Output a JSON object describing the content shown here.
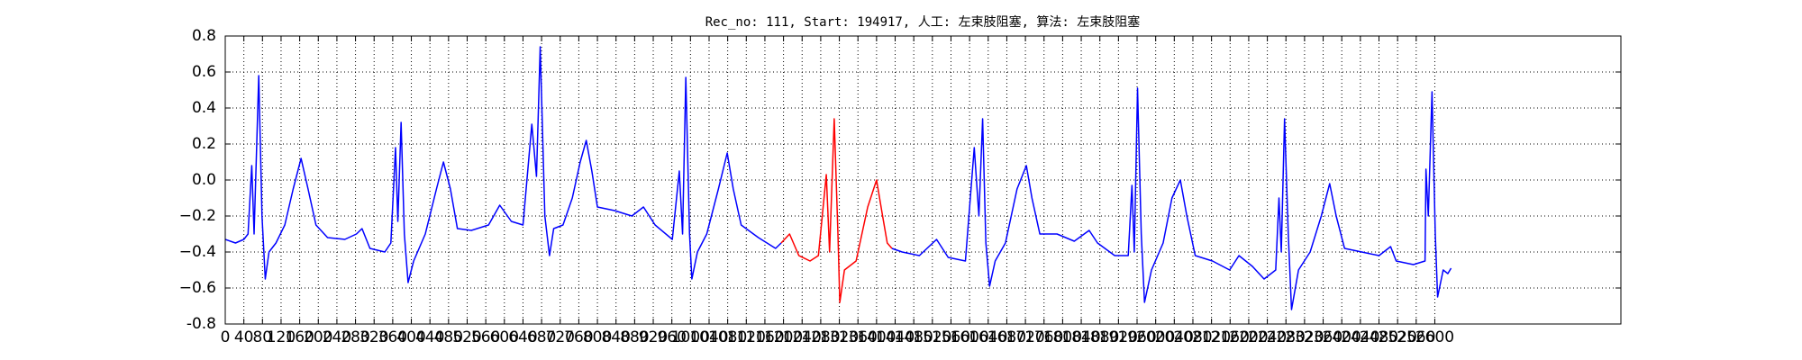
{
  "chart_data": {
    "type": "line",
    "title": "Rec_no: 111, Start: 194917, 人工: 左束肢阻塞, 算法: 左束肢阻塞",
    "xlim": [
      0,
      3000
    ],
    "ylim": [
      -0.8,
      0.8
    ],
    "xticks": [
      0,
      40,
      80,
      120,
      160,
      200,
      240,
      280,
      320,
      360,
      400,
      440,
      480,
      520,
      560,
      600,
      640,
      680,
      720,
      760,
      800,
      840,
      880,
      920,
      960,
      1000,
      1040,
      1080,
      1120,
      1160,
      1200,
      1240,
      1280,
      1320,
      1360,
      1400,
      1440,
      1480,
      1520,
      1560,
      1600,
      1640,
      1680,
      1720,
      1760,
      1800,
      1840,
      1880,
      1920,
      1960,
      2000,
      2040,
      2080,
      2120,
      2160,
      2200,
      2240,
      2280,
      2320,
      2360,
      2400,
      2440,
      2480,
      2520,
      2560,
      2600
    ],
    "yticks": [
      -0.8,
      {
        "value": -0.6,
        "label": "−0.6"
      },
      {
        "value": -0.4,
        "label": "−0.4"
      },
      {
        "value": -0.2,
        "label": "−0.2"
      },
      {
        "value": 0,
        "label": "0.0"
      },
      0.2,
      0.4,
      0.6,
      0.8
    ],
    "grid": true,
    "series": [
      {
        "color": "#0000ff",
        "x": [
          0,
          22,
          40,
          49,
          57,
          62,
          72,
          79,
          86,
          94,
          109,
          128,
          146,
          163,
          178,
          195,
          220,
          257,
          282,
          294,
          311,
          343,
          356,
          366,
          371,
          378,
          385,
          393,
          405,
          430,
          454,
          469,
          484,
          499,
          529,
          566,
          590,
          615,
          640,
          659,
          669,
          677,
          687,
          697,
          706,
          726,
          746,
          763,
          776,
          788,
          800,
          837,
          874,
          899,
          924,
          961,
          976,
          983,
          990,
          998,
          1003,
          1015,
          1035,
          1060,
          1079,
          1092,
          1109,
          1146,
          1183,
          1195
        ],
        "values": [
          -0.33,
          -0.35,
          -0.33,
          -0.3,
          0.08,
          -0.3,
          0.58,
          -0.2,
          -0.55,
          -0.4,
          -0.35,
          -0.25,
          -0.05,
          0.12,
          -0.05,
          -0.25,
          -0.32,
          -0.33,
          -0.3,
          -0.27,
          -0.38,
          -0.4,
          -0.35,
          0.18,
          -0.23,
          0.32,
          -0.3,
          -0.57,
          -0.45,
          -0.3,
          -0.05,
          0.1,
          -0.05,
          -0.27,
          -0.28,
          -0.25,
          -0.14,
          -0.23,
          -0.25,
          0.31,
          0.02,
          0.74,
          -0.2,
          -0.42,
          -0.27,
          -0.25,
          -0.1,
          0.1,
          0.22,
          0.05,
          -0.15,
          -0.17,
          -0.2,
          -0.15,
          -0.25,
          -0.33,
          0.05,
          -0.3,
          0.57,
          -0.3,
          -0.55,
          -0.4,
          -0.3,
          -0.05,
          0.15,
          -0.05,
          -0.25,
          -0.32,
          -0.38,
          -0.35
        ]
      },
      {
        "color": "#ff0000",
        "x": [
          1195,
          1213,
          1233,
          1257,
          1275,
          1292,
          1299,
          1309,
          1317,
          1321,
          1331,
          1356,
          1381,
          1400,
          1413,
          1423,
          1433
        ],
        "values": [
          -0.35,
          -0.3,
          -0.42,
          -0.45,
          -0.42,
          0.03,
          -0.4,
          0.34,
          -0.3,
          -0.68,
          -0.5,
          -0.45,
          -0.15,
          0.0,
          -0.2,
          -0.35,
          -0.38
        ]
      },
      {
        "color": "#0000ff",
        "x": [
          1433,
          1455,
          1492,
          1529,
          1554,
          1591,
          1610,
          1620,
          1628,
          1635,
          1643,
          1655,
          1677,
          1702,
          1722,
          1734,
          1751,
          1788,
          1825,
          1857,
          1875,
          1912,
          1941,
          1949,
          1954,
          1961,
          1969,
          1976,
          1991,
          2016,
          2035,
          2053,
          2067,
          2085,
          2122,
          2159,
          2179,
          2208,
          2233,
          2258,
          2265,
          2270,
          2277,
          2285,
          2292,
          2307,
          2332,
          2356,
          2374,
          2388,
          2406,
          2443,
          2480,
          2505,
          2517,
          2554,
          2579,
          2581,
          2586,
          2594,
          2601,
          2606,
          2618,
          2628,
          2635
        ],
        "values": [
          -0.38,
          -0.4,
          -0.42,
          -0.33,
          -0.43,
          -0.45,
          0.18,
          -0.2,
          0.34,
          -0.35,
          -0.59,
          -0.45,
          -0.35,
          -0.05,
          0.08,
          -0.1,
          -0.3,
          -0.3,
          -0.34,
          -0.28,
          -0.35,
          -0.42,
          -0.42,
          -0.03,
          -0.4,
          0.51,
          -0.3,
          -0.68,
          -0.5,
          -0.35,
          -0.1,
          0.0,
          -0.2,
          -0.42,
          -0.45,
          -0.5,
          -0.42,
          -0.48,
          -0.55,
          -0.5,
          -0.1,
          -0.4,
          0.34,
          -0.3,
          -0.72,
          -0.5,
          -0.4,
          -0.2,
          -0.02,
          -0.2,
          -0.38,
          -0.4,
          -0.42,
          -0.37,
          -0.45,
          -0.47,
          -0.45,
          0.06,
          -0.2,
          0.49,
          -0.3,
          -0.65,
          -0.5,
          -0.52,
          -0.49
        ]
      }
    ]
  }
}
